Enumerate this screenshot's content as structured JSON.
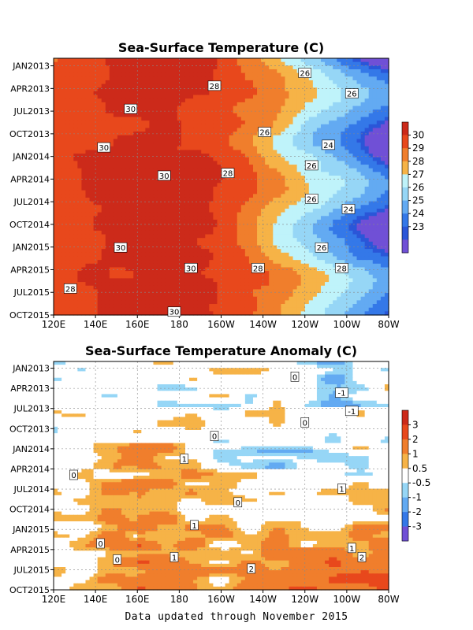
{
  "footer": "Data updated through November 2015",
  "chart_data": [
    {
      "type": "heatmap",
      "title": "Sea-Surface Temperature (C)",
      "x_ticks": [
        "120E",
        "140E",
        "160E",
        "180",
        "160W",
        "140W",
        "120W",
        "100W",
        "80W"
      ],
      "y_ticks": [
        "JAN2013",
        "APR2013",
        "JUL2013",
        "OCT2013",
        "JAN2014",
        "APR2014",
        "JUL2014",
        "OCT2014",
        "JAN2015",
        "APR2015",
        "JUL2015",
        "OCT2015"
      ],
      "xlim": [
        "120E",
        "80W"
      ],
      "ylim": [
        "JAN2013",
        "NOV2015"
      ],
      "grid": true,
      "colorbar": {
        "ticks": [
          "30",
          "29",
          "28",
          "27",
          "26",
          "25",
          "24",
          "23"
        ],
        "colors": [
          "#cc2a1a",
          "#e8481c",
          "#f07e2c",
          "#f6b347",
          "#bff3fa",
          "#96d6f6",
          "#63aaf2",
          "#3478e8",
          "#2a56d8",
          "#7050d6"
        ]
      },
      "contour_labels": [
        "26",
        "28",
        "26",
        "30",
        "26",
        "24",
        "30",
        "30",
        "28",
        "26",
        "26",
        "24",
        "30",
        "26",
        "30",
        "28",
        "28",
        "28",
        "30"
      ],
      "description_values": {
        "west_max": 30,
        "east_min": 23,
        "unit": "C"
      }
    },
    {
      "type": "heatmap",
      "title": "Sea-Surface Temperature Anomaly (C)",
      "x_ticks": [
        "120E",
        "140E",
        "160E",
        "180",
        "160W",
        "140W",
        "120W",
        "100W",
        "80W"
      ],
      "y_ticks": [
        "JAN2013",
        "APR2013",
        "JUL2013",
        "OCT2013",
        "JAN2014",
        "APR2014",
        "JUL2014",
        "OCT2014",
        "JAN2015",
        "APR2015",
        "JUL2015",
        "OCT2015"
      ],
      "xlim": [
        "120E",
        "80W"
      ],
      "ylim": [
        "JAN2013",
        "NOV2015"
      ],
      "grid": true,
      "colorbar": {
        "ticks": [
          "3",
          "2",
          "1",
          "0.5",
          "-0.5",
          "-1",
          "-2",
          "-3"
        ],
        "colors": [
          "#cc2a1a",
          "#e8481c",
          "#f07e2c",
          "#f6b347",
          "#ffffff",
          "#96d6f6",
          "#63aaf2",
          "#3478e8",
          "#7050d6"
        ]
      },
      "contour_labels": [
        "0",
        "-1",
        "-1",
        "0",
        "0",
        "1",
        "0",
        "1",
        "0",
        "1",
        "0",
        "1",
        "1",
        "0",
        "2",
        "2"
      ],
      "description_values": {
        "max_anomaly": 2,
        "min_anomaly": -1,
        "unit": "C"
      }
    }
  ]
}
